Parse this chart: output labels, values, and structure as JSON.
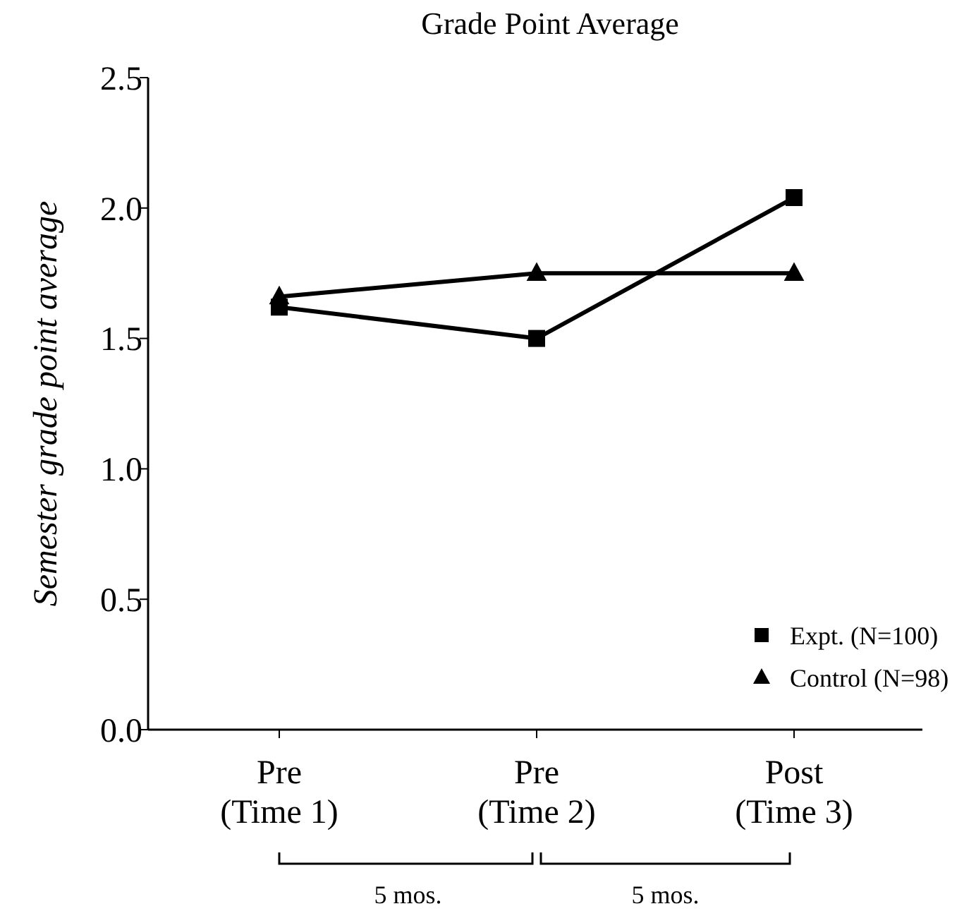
{
  "chart_data": {
    "type": "line",
    "title": "Grade Point Average",
    "ylabel": "Semester grade point average",
    "categories": [
      "Pre\n(Time 1)",
      "Pre\n(Time 2)",
      "Post\n(Time 3)"
    ],
    "series": [
      {
        "name": "Expt. (N=100)",
        "color": "#000000",
        "marker": "square",
        "values": [
          1.62,
          1.5,
          2.04
        ]
      },
      {
        "name": "Control (N=98)",
        "color": "#000000",
        "marker": "triangle",
        "values": [
          1.66,
          1.75,
          1.75
        ]
      }
    ],
    "ylim": [
      0,
      2.5
    ],
    "yticks": [
      {
        "value": 0,
        "label": "0.0"
      },
      {
        "value": 0.5,
        "label": "0.5"
      },
      {
        "value": 1,
        "label": "1.0"
      },
      {
        "value": 1.5,
        "label": "1.5"
      },
      {
        "value": 2,
        "label": "2.0"
      },
      {
        "value": 2.5,
        "label": "2.5"
      }
    ],
    "grid": false,
    "legend": "bottom right",
    "line_style": "solid",
    "annotations": [
      "5 mos.",
      "5 mos."
    ]
  }
}
